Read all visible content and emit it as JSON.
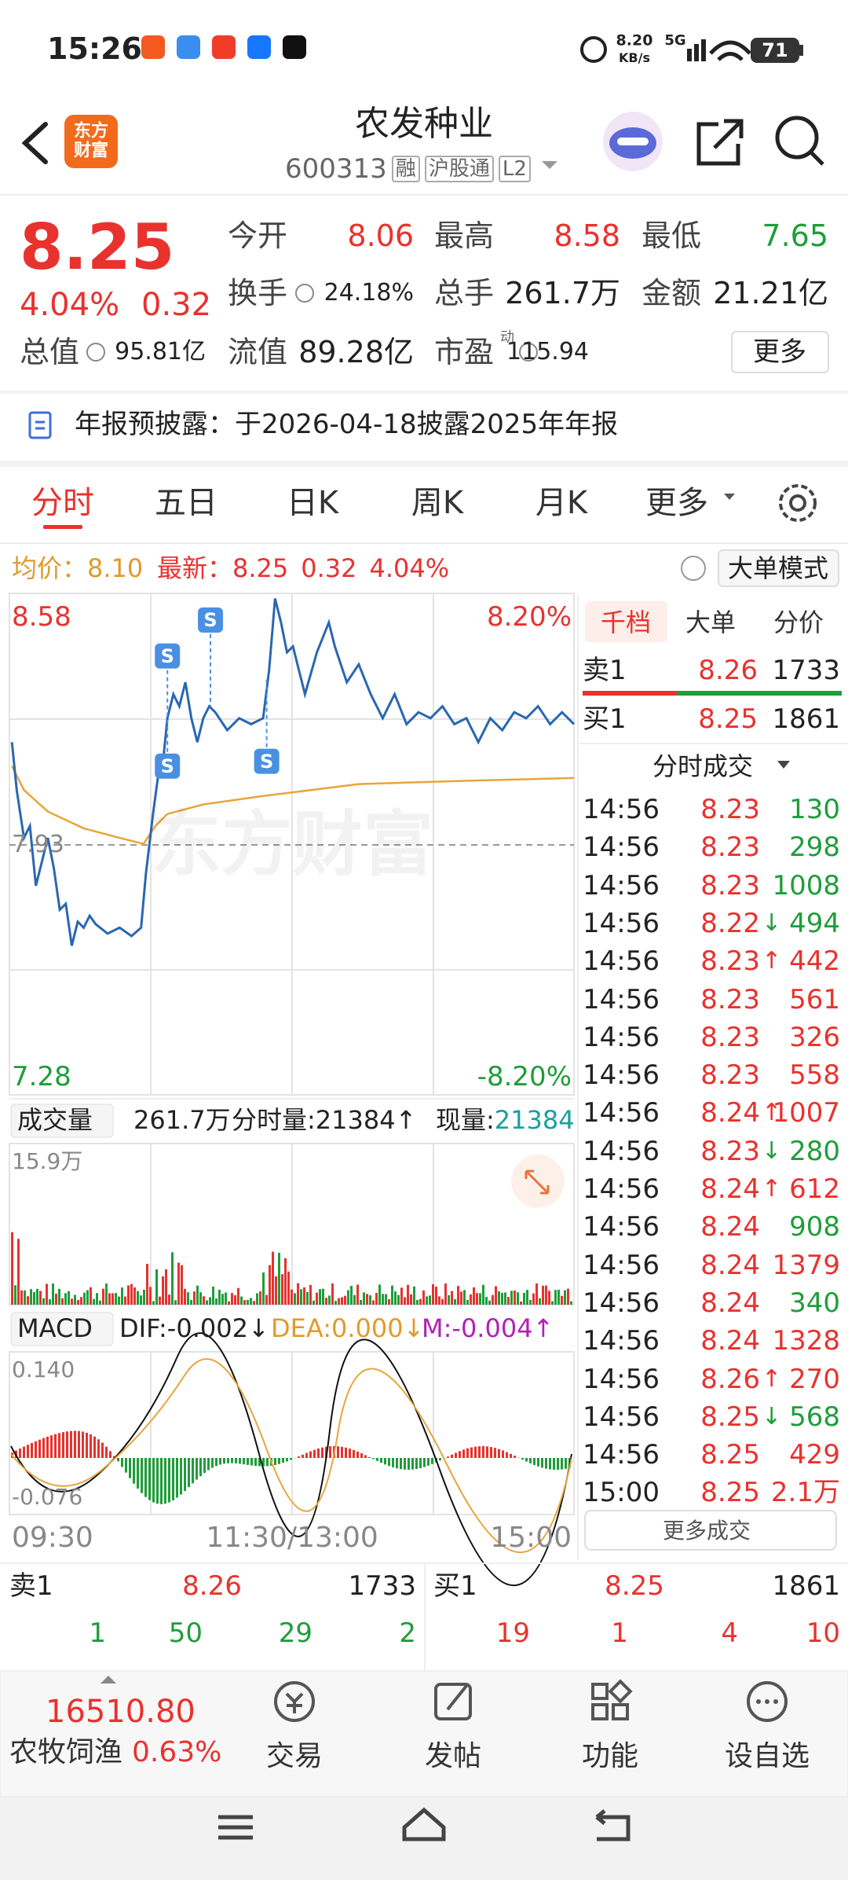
{
  "status_bar": {
    "time": "15:26",
    "speed": "8.20",
    "speed_unit": "KB/s",
    "network": "5G",
    "battery": "71"
  },
  "header": {
    "logo": "东方财富",
    "title": "农发种业",
    "code": "600313",
    "tags": [
      "融",
      "沪股通",
      "L2"
    ]
  },
  "quote": {
    "price": "8.25",
    "change_pct": "4.04%",
    "change": "0.32",
    "stats": [
      {
        "label": "今开",
        "value": "8.06",
        "color": "red"
      },
      {
        "label": "最高",
        "value": "8.58",
        "color": "red"
      },
      {
        "label": "最低",
        "value": "7.65",
        "color": "green"
      },
      {
        "label": "换手",
        "value": "24.18%",
        "color": "black"
      },
      {
        "label": "总手",
        "value": "261.7万",
        "color": "black"
      },
      {
        "label": "金额",
        "value": "21.21亿",
        "color": "black"
      },
      {
        "label": "总值",
        "value": "95.81亿",
        "color": "black"
      },
      {
        "label": "流值",
        "value": "89.28亿",
        "color": "black"
      },
      {
        "label": "市盈",
        "value": "115.94",
        "color": "black"
      }
    ],
    "pe_sup": "动",
    "more": "更多"
  },
  "notice": "年报预披露：于2026-04-18披露2025年年报",
  "tabs": [
    "分时",
    "五日",
    "日K",
    "周K",
    "月K",
    "更多"
  ],
  "info": {
    "avg_label": "均价：",
    "avg": "8.10",
    "last_label": "最新：",
    "last": "8.25",
    "change": "0.32",
    "change_pct": "4.04%",
    "mode": "大单模式"
  },
  "chart": {
    "high": "8.58",
    "high_pct": "8.20%",
    "prev_close": "7.93",
    "low": "7.28",
    "low_pct": "-8.20%",
    "watermark": "东方财富",
    "markers": [
      "S",
      "S",
      "S",
      "S"
    ]
  },
  "volume": {
    "label": "成交量",
    "total": "261.7万",
    "tick": "分时量:21384↑",
    "current_label": "现量:",
    "current": "21384",
    "max": "15.9万"
  },
  "macd": {
    "label": "MACD",
    "dif": "DIF:-0.002↓",
    "dea": "DEA:0.000↓",
    "m": "M:-0.004↑",
    "top": "0.140",
    "bottom": "-0.076"
  },
  "time_axis": [
    "09:30",
    "11:30/13:00",
    "15:00"
  ],
  "side_tabs": [
    "千档",
    "大单",
    "分价"
  ],
  "side_book": [
    {
      "label": "卖1",
      "price": "8.26",
      "volume": "1733"
    },
    {
      "label": "买1",
      "price": "8.25",
      "volume": "1861"
    }
  ],
  "trades_title": "分时成交",
  "trades": [
    {
      "time": "14:56",
      "price": "8.23",
      "volume": "130",
      "color": "green"
    },
    {
      "time": "14:56",
      "price": "8.23",
      "volume": "298",
      "color": "green"
    },
    {
      "time": "14:56",
      "price": "8.23",
      "volume": "1008",
      "color": "green"
    },
    {
      "time": "14:56",
      "price": "8.22",
      "volume": "494",
      "color": "green",
      "arrow": "↓"
    },
    {
      "time": "14:56",
      "price": "8.23",
      "volume": "442",
      "color": "red",
      "arrow": "↑"
    },
    {
      "time": "14:56",
      "price": "8.23",
      "volume": "561",
      "color": "red"
    },
    {
      "time": "14:56",
      "price": "8.23",
      "volume": "326",
      "color": "red"
    },
    {
      "time": "14:56",
      "price": "8.23",
      "volume": "558",
      "color": "red"
    },
    {
      "time": "14:56",
      "price": "8.24",
      "volume": "1007",
      "color": "red",
      "arrow": "↑"
    },
    {
      "time": "14:56",
      "price": "8.23",
      "volume": "280",
      "color": "green",
      "arrow": "↓"
    },
    {
      "time": "14:56",
      "price": "8.24",
      "volume": "612",
      "color": "red",
      "arrow": "↑"
    },
    {
      "time": "14:56",
      "price": "8.24",
      "volume": "908",
      "color": "green"
    },
    {
      "time": "14:56",
      "price": "8.24",
      "volume": "1379",
      "color": "red"
    },
    {
      "time": "14:56",
      "price": "8.24",
      "volume": "340",
      "color": "green"
    },
    {
      "time": "14:56",
      "price": "8.24",
      "volume": "1328",
      "color": "red"
    },
    {
      "time": "14:56",
      "price": "8.26",
      "volume": "270",
      "color": "red",
      "arrow": "↑"
    },
    {
      "time": "14:56",
      "price": "8.25",
      "volume": "568",
      "color": "green",
      "arrow": "↓"
    },
    {
      "time": "14:56",
      "price": "8.25",
      "volume": "429",
      "color": "red"
    },
    {
      "time": "15:00",
      "price": "8.25",
      "volume": "2.1万",
      "color": "red"
    }
  ],
  "more_trades": "更多成交",
  "order_book": {
    "sell": {
      "label": "卖1",
      "price": "8.26",
      "volume": "1733",
      "queue": [
        "1",
        "50",
        "29",
        "2"
      ]
    },
    "buy": {
      "label": "买1",
      "price": "8.25",
      "volume": "1861",
      "queue": [
        "19",
        "1",
        "4",
        "10"
      ]
    }
  },
  "bottom_nav": {
    "index_value": "16510.80",
    "index_name": "农牧饲渔",
    "index_change": "0.63%",
    "items": [
      "交易",
      "发帖",
      "功能",
      "设自选"
    ]
  }
}
